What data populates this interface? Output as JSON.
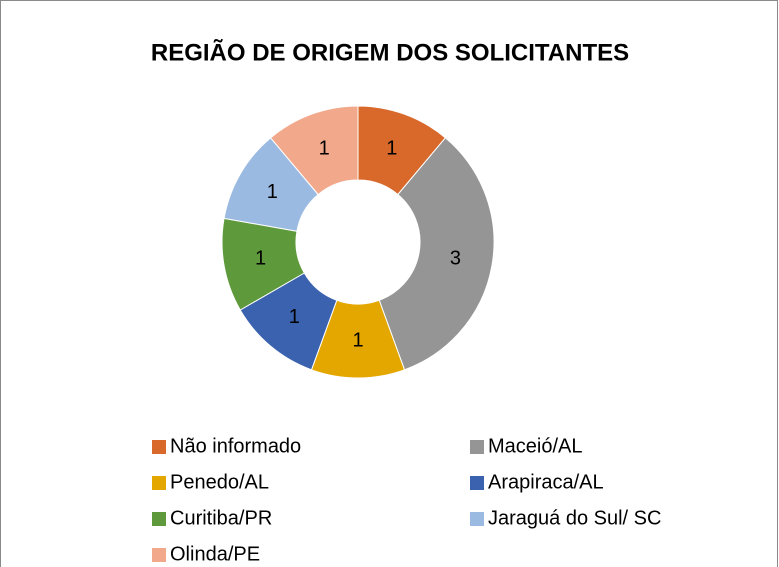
{
  "chart_data": {
    "type": "donut",
    "title": "REGIÃO DE ORIGEM DOS SOLICITANTES",
    "categories": [
      "Não informado",
      "Maceió/AL",
      "Penedo/AL",
      "Arapiraca/AL",
      "Curitiba/PR",
      "Jaraguá do Sul/ SC",
      "Olinda/PE"
    ],
    "values": [
      1,
      3,
      1,
      1,
      1,
      1,
      1
    ],
    "colors": [
      "#d9692b",
      "#959595",
      "#e3a700",
      "#3a62ae",
      "#5e9a3c",
      "#9bbae2",
      "#f2a98b"
    ],
    "legend": "bottom"
  }
}
